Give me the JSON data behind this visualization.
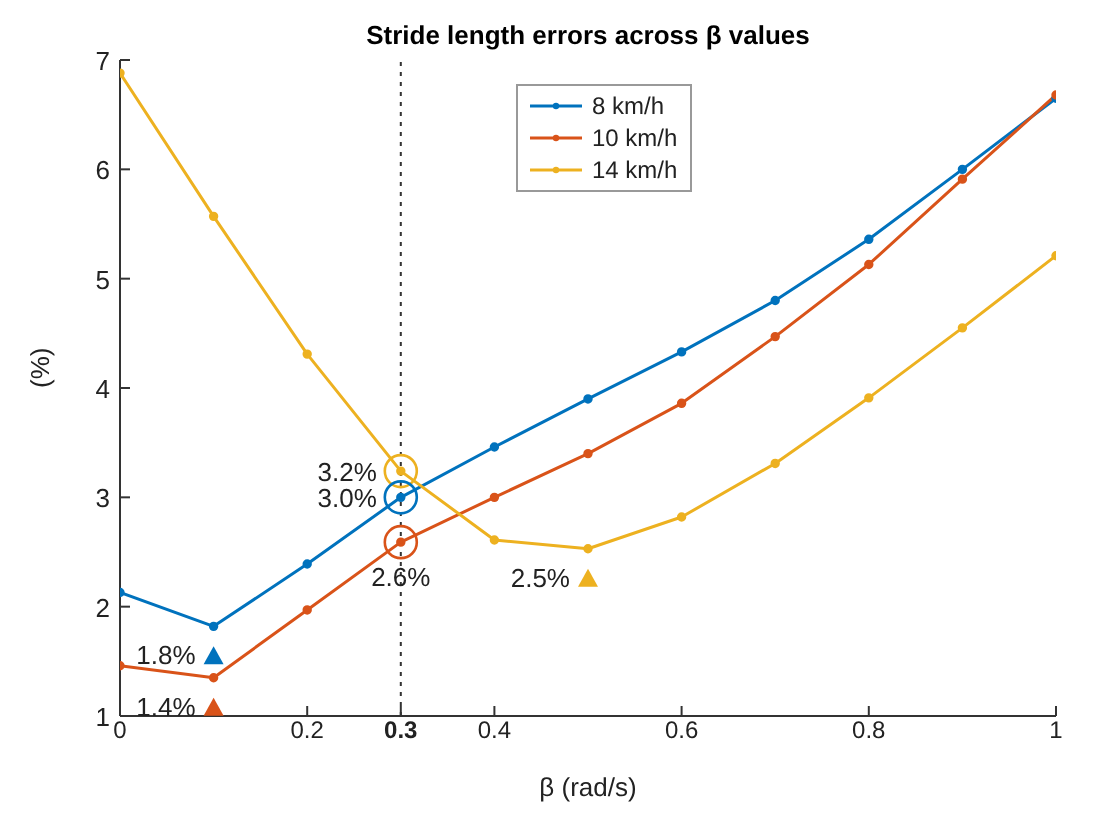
{
  "chart_data": {
    "type": "line",
    "title": "Stride length errors across β values",
    "xlabel": "β (rad/s)",
    "ylabel": "(%)",
    "x": [
      0,
      0.1,
      0.2,
      0.3,
      0.4,
      0.5,
      0.6,
      0.7,
      0.8,
      0.9,
      1
    ],
    "series": [
      {
        "name": "8 km/h",
        "color": "#0072bd",
        "values": [
          2.13,
          1.82,
          2.39,
          3.0,
          3.46,
          3.9,
          4.33,
          4.8,
          5.36,
          6.0,
          6.65
        ]
      },
      {
        "name": "10 km/h",
        "color": "#d95319",
        "values": [
          1.46,
          1.35,
          1.97,
          2.59,
          3.0,
          3.4,
          3.86,
          4.47,
          5.13,
          5.91,
          6.68
        ]
      },
      {
        "name": "14 km/h",
        "color": "#edb120",
        "values": [
          6.88,
          5.57,
          4.31,
          3.24,
          2.61,
          2.53,
          2.82,
          3.31,
          3.91,
          4.55,
          5.21
        ]
      }
    ],
    "xlim": [
      0,
      1
    ],
    "xticks": [
      0,
      0.2,
      0.3,
      0.4,
      0.6,
      0.8,
      1
    ],
    "ylim": [
      1,
      7
    ],
    "yticks": [
      1,
      2,
      3,
      4,
      5,
      6,
      7
    ],
    "ref_lines": [
      {
        "axis": "x",
        "value": 0.3,
        "color": "#333333",
        "line_style": "dotted"
      }
    ],
    "annotations": [
      {
        "text": "3.2%",
        "x": 0.3,
        "y": 3.24
      },
      {
        "text": "3.0%",
        "x": 0.3,
        "y": 3.0
      },
      {
        "text": "2.6%",
        "x": 0.3,
        "y": 2.59
      },
      {
        "text": "1.8%",
        "x": 0.1,
        "y": 1.82
      },
      {
        "text": "1.4%",
        "x": 0.1,
        "y": 1.35
      },
      {
        "text": "2.5%",
        "x": 0.5,
        "y": 2.53
      }
    ],
    "legend": "top",
    "grid": false,
    "marker": "circle",
    "line_style": "solid"
  }
}
